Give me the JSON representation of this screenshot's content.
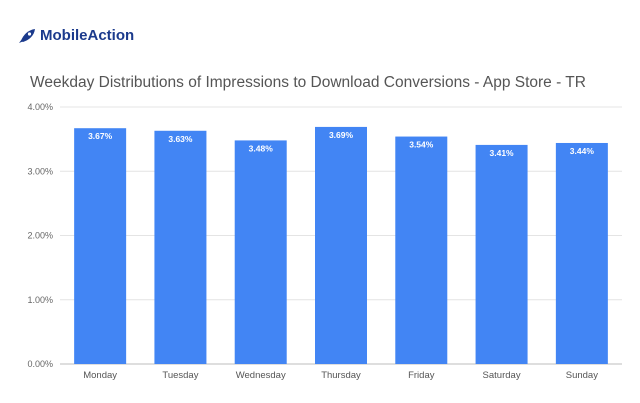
{
  "brand": {
    "name": "MobileAction"
  },
  "chart_data": {
    "type": "bar",
    "title": "Weekday Distributions of Impressions to Download Conversions - App Store - TR",
    "categories": [
      "Monday",
      "Tuesday",
      "Wednesday",
      "Thursday",
      "Friday",
      "Saturday",
      "Sunday"
    ],
    "values": [
      3.67,
      3.63,
      3.48,
      3.69,
      3.54,
      3.41,
      3.44
    ],
    "data_labels": [
      "3.67%",
      "3.63%",
      "3.48%",
      "3.69%",
      "3.54%",
      "3.41%",
      "3.44%"
    ],
    "y_ticks": [
      0,
      1,
      2,
      3,
      4
    ],
    "y_tick_labels": [
      "0.00%",
      "1.00%",
      "2.00%",
      "3.00%",
      "4.00%"
    ],
    "ylim": [
      0,
      4
    ],
    "xlabel": "",
    "ylabel": "",
    "grid": true,
    "bar_color": "#4285f4"
  }
}
